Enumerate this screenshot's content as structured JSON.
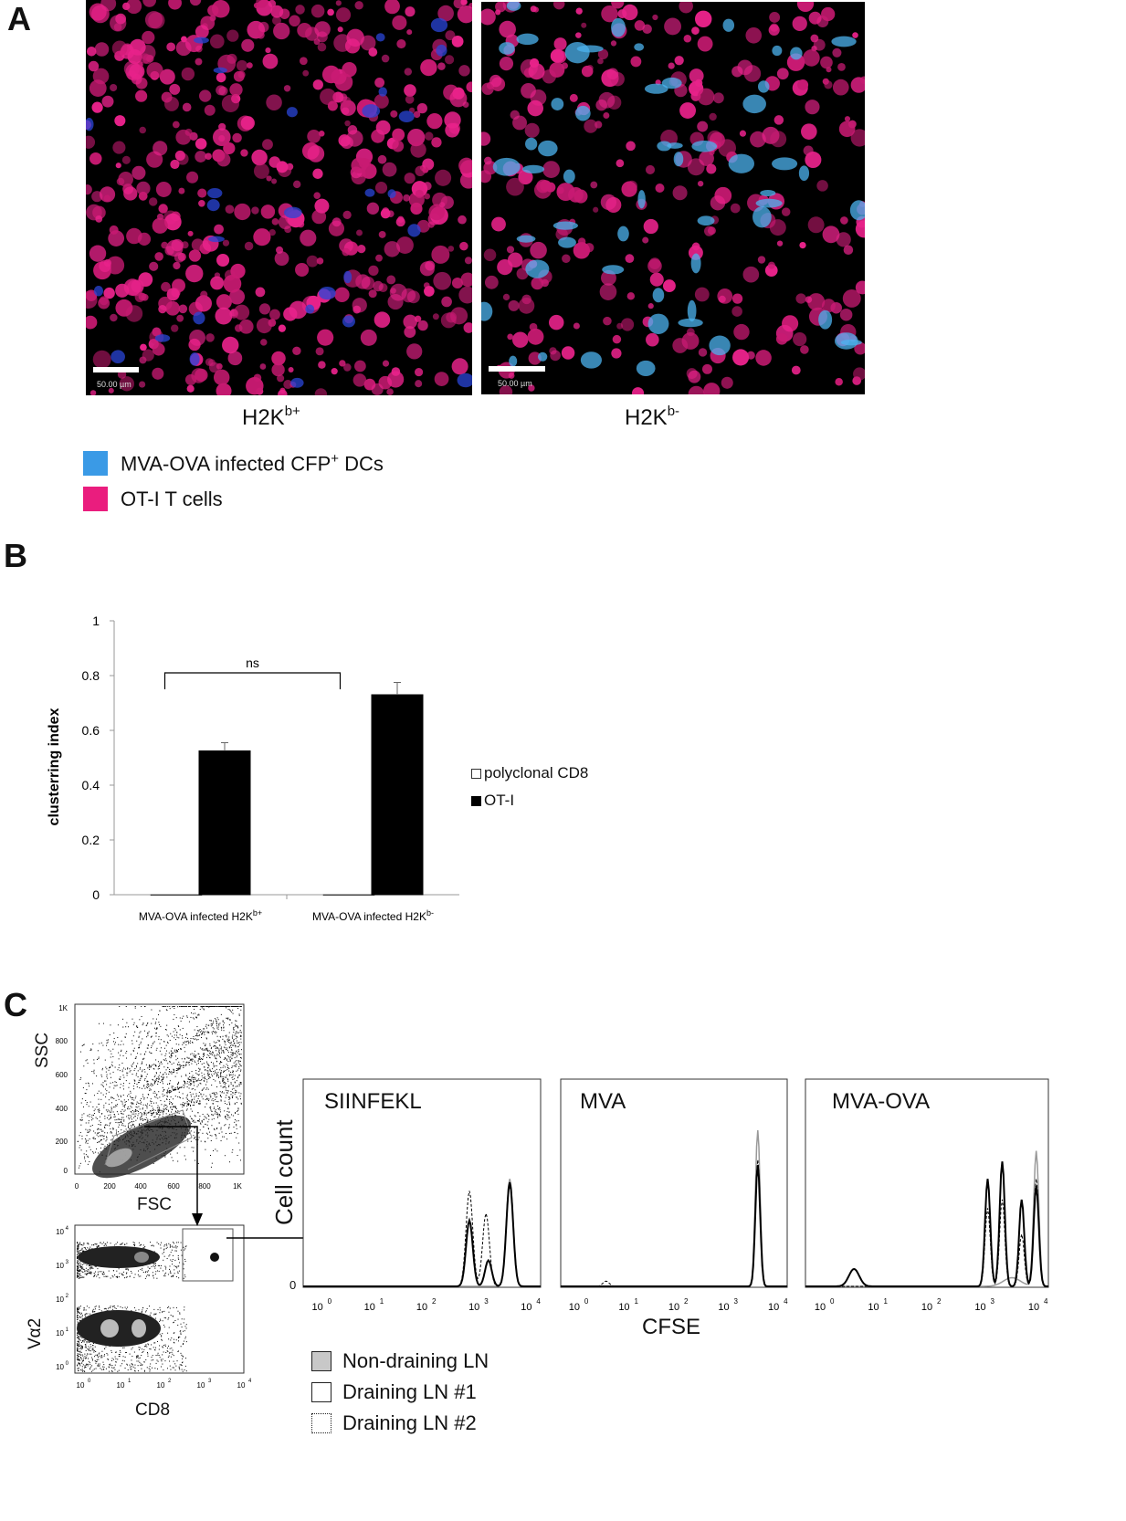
{
  "figure": {
    "panel_a": {
      "letter": "A",
      "images": [
        {
          "caption_base": "H2K",
          "caption_sup": "b+",
          "scale_bar": "50.00 µm"
        },
        {
          "caption_base": "H2K",
          "caption_sup": "b-",
          "scale_bar": "50.00 µm"
        }
      ],
      "legend": [
        {
          "label_base": "MVA-OVA infected CFP",
          "label_sup": "+",
          "label_tail": " DCs",
          "color": "#3a9ae6"
        },
        {
          "label_base": "OT-I T cells",
          "color": "#ea1d7e"
        }
      ]
    },
    "panel_b": {
      "letter": "B"
    },
    "panel_c": {
      "letter": "C",
      "scatter1": {
        "ylabel": "SSC",
        "xlabel": "FSC",
        "yticks": [
          "1K",
          "800",
          "600",
          "400",
          "200",
          "0"
        ],
        "xticks": [
          "0",
          "200",
          "400",
          "600",
          "800",
          "1K"
        ]
      },
      "scatter2": {
        "ylabel": "Vα2",
        "xlabel": "CD8"
      },
      "histograms": [
        {
          "title": "SIINFEKL"
        },
        {
          "title": "MVA"
        },
        {
          "title": "MVA-OVA"
        }
      ],
      "hist_ylabel": "Cell count",
      "hist_xlabel": "CFSE",
      "hist_zero": "0",
      "legend": [
        {
          "label": "Non-draining LN",
          "style": "filled-gray"
        },
        {
          "label": "Draining LN #1",
          "style": "solid"
        },
        {
          "label": "Draining LN #2",
          "style": "dotted"
        }
      ]
    }
  },
  "chart_data": {
    "type": "bar",
    "categories": [
      "MVA-OVA infected H2K^b+",
      "MVA-OVA infected H2K^b-"
    ],
    "category_labels": [
      {
        "base": "MVA-OVA infected H2K",
        "sup": "b+"
      },
      {
        "base": "MVA-OVA infected H2K",
        "sup": "b-"
      }
    ],
    "series": [
      {
        "name": "polyclonal CD8",
        "values": [
          0,
          0
        ],
        "color": "#ffffff"
      },
      {
        "name": "OT-I",
        "values": [
          0.525,
          0.73
        ],
        "errors": [
          0.03,
          0.045
        ],
        "color": "#000000"
      }
    ],
    "ylabel": "clusterring index",
    "ylim": [
      0,
      1
    ],
    "yticks": [
      "0",
      "0.2",
      "0.4",
      "0.6",
      "0.8",
      "1"
    ],
    "significance": "ns",
    "legend_position": "right"
  }
}
